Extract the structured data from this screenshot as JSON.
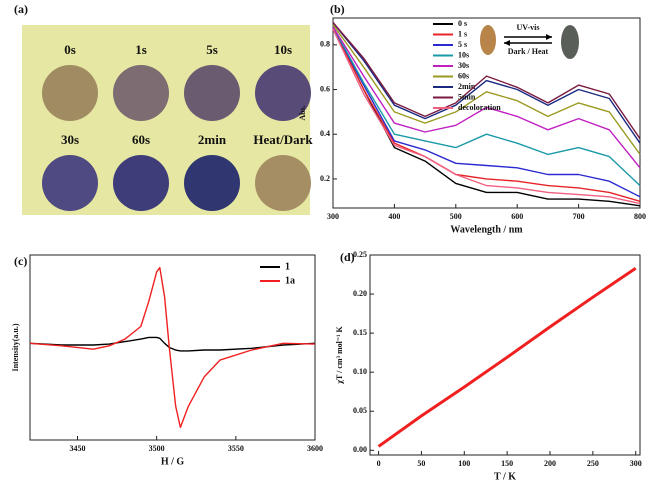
{
  "chart_data": [
    {
      "type": "swatches",
      "panel": "(a)",
      "background": "#e6e7a2",
      "items": [
        {
          "label": "0s",
          "color": "#a08b62"
        },
        {
          "label": "1s",
          "color": "#7d6c72"
        },
        {
          "label": "5s",
          "color": "#6b5b70"
        },
        {
          "label": "10s",
          "color": "#584b78"
        },
        {
          "label": "30s",
          "color": "#4f4a82"
        },
        {
          "label": "60s",
          "color": "#3e3d7a"
        },
        {
          "label": "2min",
          "color": "#303670"
        },
        {
          "label": "Heat/Dark",
          "color": "#a58d64"
        }
      ]
    },
    {
      "type": "line",
      "panel": "(b)",
      "xlabel": "Wavelength / nm",
      "ylabel": "Abs.",
      "annotations": [
        "UV-vis",
        "Dark / Heat"
      ],
      "legend": "top",
      "x": [
        300,
        350,
        400,
        450,
        500,
        550,
        600,
        650,
        700,
        750,
        800
      ],
      "xlim": [
        300,
        800
      ],
      "xticks": [
        300,
        400,
        500,
        600,
        700,
        800
      ],
      "ylim": [
        0.07,
        0.92
      ],
      "yticks": [
        0.2,
        0.4,
        0.6,
        0.8
      ],
      "series": [
        {
          "name": "0 s",
          "color": "#000000",
          "values": [
            0.88,
            0.6,
            0.34,
            0.28,
            0.18,
            0.14,
            0.14,
            0.11,
            0.11,
            0.1,
            0.08
          ]
        },
        {
          "name": "1 s",
          "color": "#e8242a",
          "values": [
            0.88,
            0.6,
            0.36,
            0.3,
            0.22,
            0.2,
            0.19,
            0.17,
            0.16,
            0.14,
            0.1
          ]
        },
        {
          "name": "5 s",
          "color": "#2a2ad0",
          "values": [
            0.88,
            0.62,
            0.37,
            0.33,
            0.27,
            0.26,
            0.25,
            0.22,
            0.22,
            0.19,
            0.12
          ]
        },
        {
          "name": "10s",
          "color": "#1a9aa8",
          "values": [
            0.88,
            0.63,
            0.4,
            0.37,
            0.34,
            0.4,
            0.36,
            0.31,
            0.34,
            0.3,
            0.17
          ]
        },
        {
          "name": "30s",
          "color": "#c020c0",
          "values": [
            0.88,
            0.66,
            0.45,
            0.41,
            0.44,
            0.52,
            0.48,
            0.42,
            0.47,
            0.42,
            0.25
          ]
        },
        {
          "name": "60s",
          "color": "#9a9a20",
          "values": [
            0.89,
            0.7,
            0.5,
            0.45,
            0.5,
            0.59,
            0.55,
            0.48,
            0.54,
            0.5,
            0.31
          ]
        },
        {
          "name": "2min",
          "color": "#1a2a80",
          "values": [
            0.9,
            0.73,
            0.53,
            0.47,
            0.53,
            0.64,
            0.6,
            0.53,
            0.6,
            0.56,
            0.36
          ]
        },
        {
          "name": "5min",
          "color": "#7a1a40",
          "values": [
            0.9,
            0.74,
            0.54,
            0.48,
            0.54,
            0.66,
            0.61,
            0.54,
            0.62,
            0.58,
            0.38
          ]
        },
        {
          "name": "decoloration",
          "color": "#f06080",
          "values": [
            0.87,
            0.58,
            0.35,
            0.3,
            0.22,
            0.17,
            0.16,
            0.14,
            0.13,
            0.12,
            0.09
          ]
        }
      ]
    },
    {
      "type": "line",
      "panel": "(c)",
      "xlabel": "H / G",
      "ylabel": "Intensity(a.u.)",
      "legend": "top-right",
      "x": [
        3420,
        3440,
        3460,
        3470,
        3480,
        3490,
        3495,
        3500,
        3502,
        3505,
        3508,
        3512,
        3515,
        3520,
        3530,
        3540,
        3560,
        3580,
        3600
      ],
      "xlim": [
        3420,
        3600
      ],
      "xticks": [
        3450,
        3500,
        3550,
        3600
      ],
      "ylim": [
        -1.1,
        1.1
      ],
      "series": [
        {
          "name": "1",
          "color": "#000000",
          "values": [
            0.05,
            0.03,
            0.03,
            0.04,
            0.07,
            0.1,
            0.12,
            0.12,
            0.11,
            0.05,
            0,
            -0.03,
            -0.04,
            -0.04,
            -0.03,
            -0.03,
            -0.01,
            0.03,
            0.05
          ]
        },
        {
          "name": "1a",
          "color": "#f02020",
          "values": [
            0.05,
            0.02,
            -0.02,
            0.02,
            0.1,
            0.25,
            0.55,
            0.9,
            0.95,
            0.6,
            0,
            -0.7,
            -0.95,
            -0.7,
            -0.35,
            -0.15,
            -0.03,
            0.05,
            0.04
          ]
        }
      ]
    },
    {
      "type": "line",
      "panel": "(d)",
      "xlabel": "T / K",
      "ylabel": "χT / cm³ mol⁻¹ K",
      "x": [
        0,
        50,
        100,
        150,
        200,
        250,
        300
      ],
      "xlim": [
        -10,
        305
      ],
      "xticks": [
        0,
        50,
        100,
        150,
        200,
        250,
        300
      ],
      "ylim": [
        -0.006,
        0.25
      ],
      "yticks": [
        {
          "value": 0,
          "label": "0.00"
        },
        {
          "value": 0.05,
          "label": "0.05"
        },
        {
          "value": 0.1,
          "label": "0.10"
        },
        {
          "value": 0.15,
          "label": "0.15"
        },
        {
          "value": 0.2,
          "label": "0.20"
        },
        {
          "value": 0.25,
          "label": "0.25"
        }
      ],
      "series": [
        {
          "color": "#f02020",
          "values": [
            0.005,
            0.044,
            0.081,
            0.119,
            0.158,
            0.196,
            0.233
          ]
        }
      ]
    }
  ]
}
